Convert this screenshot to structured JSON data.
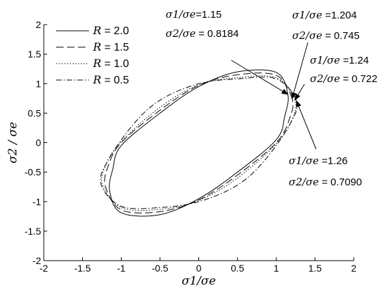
{
  "chart_data": {
    "type": "line",
    "title": "",
    "xlabel": "σ1/σe",
    "ylabel": "σ2 / σe",
    "xlim": [
      -2,
      2
    ],
    "ylim": [
      -2,
      2
    ],
    "xticks": [
      "-2",
      "-1.5",
      "-1",
      "-0.5",
      "0",
      "0.5",
      "1",
      "1.5",
      "2"
    ],
    "yticks": [
      "-2",
      "-1.5",
      "-1",
      "-0.5",
      "0",
      "0.5",
      "1",
      "1.5",
      "2"
    ],
    "grid": false,
    "legend_position": "top-left",
    "series": [
      {
        "name": "R = 2.0",
        "R": 2.0,
        "dash": "solid",
        "x": [
          1.15,
          1.0,
          0.5,
          0.0,
          -0.5,
          -1.0,
          -1.11,
          -1.15,
          -1.0,
          -0.5,
          0.0,
          0.5,
          1.0,
          1.11,
          1.15
        ],
        "y": [
          0.818,
          1.19,
          1.2,
          0.95,
          0.5,
          -0.05,
          -0.45,
          -0.818,
          -1.19,
          -1.22,
          -0.95,
          -0.5,
          0.05,
          0.45,
          0.818
        ]
      },
      {
        "name": "R = 1.5",
        "R": 1.5,
        "dash": "dashed",
        "x": [
          1.204,
          1.0,
          0.5,
          0.0,
          -0.5,
          -1.0,
          -1.17,
          -1.204,
          -1.0,
          -0.5,
          0.0,
          0.5,
          1.0,
          1.17,
          1.204
        ],
        "y": [
          0.745,
          1.14,
          1.15,
          0.97,
          0.55,
          0.0,
          -0.4,
          -0.745,
          -1.14,
          -1.17,
          -0.97,
          -0.55,
          0.0,
          0.4,
          0.745
        ]
      },
      {
        "name": "R = 1.0",
        "R": 1.0,
        "dash": "dotted",
        "x": [
          1.24,
          1.0,
          0.5,
          0.0,
          -0.5,
          -1.0,
          -1.2,
          -1.24,
          -1.0,
          -0.5,
          0.0,
          0.5,
          1.0,
          1.2,
          1.24
        ],
        "y": [
          0.722,
          1.1,
          1.1,
          0.98,
          0.6,
          0.02,
          -0.38,
          -0.722,
          -1.1,
          -1.13,
          -0.98,
          -0.6,
          -0.02,
          0.38,
          0.722
        ]
      },
      {
        "name": "R = 0.5",
        "R": 0.5,
        "dash": "dashdot",
        "x": [
          1.26,
          1.0,
          0.5,
          0.0,
          -0.5,
          -0.85,
          -1.18,
          -1.26,
          -1.0,
          -0.5,
          0.0,
          0.5,
          0.85,
          1.18,
          1.26
        ],
        "y": [
          0.709,
          1.08,
          1.08,
          1.0,
          0.72,
          0.3,
          -0.32,
          -0.709,
          -1.08,
          -1.1,
          -1.0,
          -0.72,
          -0.3,
          0.32,
          0.709
        ]
      }
    ],
    "annotations": [
      {
        "line1": {
          "sym": "σ1/σe",
          "val": "=1.15"
        },
        "line2": {
          "sym": "σ2/σe",
          "val": " = 0.8184"
        },
        "x": 1.15,
        "y": 0.8184
      },
      {
        "line1": {
          "sym": "σ1/σe",
          "val": " =1.204"
        },
        "line2": {
          "sym": "σ2/σe",
          "val": " = 0.745"
        },
        "x": 1.204,
        "y": 0.745
      },
      {
        "line1": {
          "sym": "σ1/σe",
          "val": " =1.24"
        },
        "line2": {
          "sym": "σ2/σe",
          "val": " = 0.722"
        },
        "x": 1.24,
        "y": 0.722
      },
      {
        "line1": {
          "sym": "σ1/σe",
          "val": " =1.26"
        },
        "line2": {
          "sym": "σ2/σe",
          "val": " = 0.7090"
        },
        "x": 1.26,
        "y": 0.709
      }
    ]
  }
}
